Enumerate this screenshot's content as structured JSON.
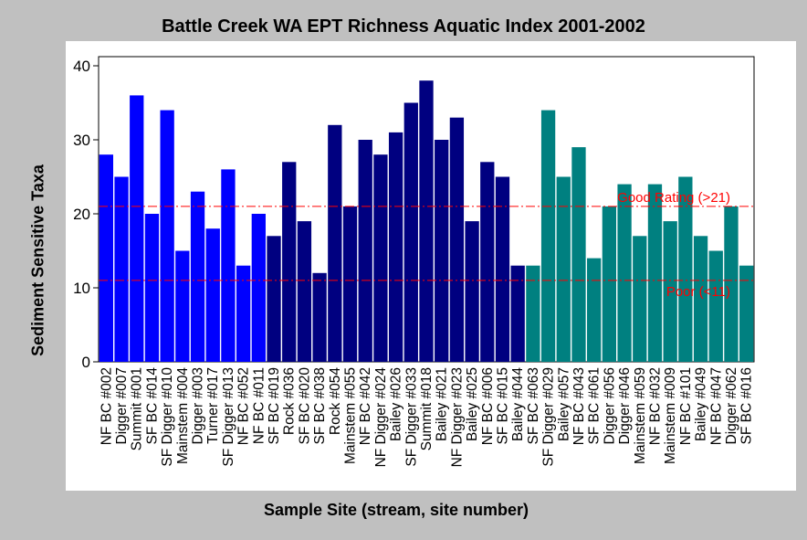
{
  "chart_data": {
    "type": "bar",
    "title": "Battle Creek WA EPT Richness Aquatic Index 2001-2002",
    "xlabel": "Sample Site (stream, site number)",
    "ylabel": "Sediment Sensitive Taxa",
    "ylim": [
      0,
      40
    ],
    "yticks": [
      0,
      10,
      20,
      30,
      40
    ],
    "grid": false,
    "categories": [
      "NF BC #002",
      "Digger #007",
      "Summit #001",
      "SF BC #014",
      "SF Digger #010",
      "Mainstem #004",
      "Digger #003",
      "Turner #017",
      "SF Digger #013",
      "NF BC #052",
      "NF BC #011",
      "SF BC #019",
      "Rock #036",
      "SF BC #020",
      "SF BC #038",
      "Rock #054",
      "Mainstem #055",
      "NF BC #042",
      "NF Digger #024",
      "Bailey #026",
      "SF Digger #033",
      "Summit #018",
      "Bailey #021",
      "NF Digger #023",
      "Bailey #025",
      "NF BC #006",
      "SF BC #015",
      "Bailey #044",
      "SF BC #063",
      "SF Digger #029",
      "Bailey #057",
      "NF BC #043",
      "SF BC #061",
      "Digger #056",
      "Digger #046",
      "Mainstem #059",
      "NF BC #032",
      "Mainstem #009",
      "NF BC #101",
      "Bailey #049",
      "NF BC #047",
      "Digger #062",
      "SF BC #016"
    ],
    "values": [
      28,
      25,
      36,
      20,
      34,
      15,
      23,
      18,
      26,
      13,
      20,
      17,
      27,
      19,
      12,
      32,
      21,
      30,
      28,
      31,
      35,
      38,
      30,
      33,
      19,
      27,
      25,
      13,
      13,
      34,
      25,
      29,
      14,
      21,
      24,
      17,
      24,
      19,
      25,
      17,
      15,
      21,
      13
    ],
    "bar_colors": [
      "#0000ff",
      "#0000ff",
      "#0000ff",
      "#0000ff",
      "#0000ff",
      "#0000ff",
      "#0000ff",
      "#0000ff",
      "#0000ff",
      "#0000ff",
      "#0000ff",
      "#000080",
      "#000080",
      "#000080",
      "#000080",
      "#000080",
      "#000080",
      "#000080",
      "#000080",
      "#000080",
      "#000080",
      "#000080",
      "#000080",
      "#000080",
      "#000080",
      "#000080",
      "#000080",
      "#000080",
      "#008080",
      "#008080",
      "#008080",
      "#008080",
      "#008080",
      "#008080",
      "#008080",
      "#008080",
      "#008080",
      "#008080",
      "#008080",
      "#008080",
      "#008080",
      "#008080",
      "#008080"
    ],
    "reference_lines": [
      {
        "value": 21,
        "label": "Good Rating  (>21)",
        "color": "#ff0000"
      },
      {
        "value": 11,
        "label": "Poor (<11)",
        "color": "#ff0000"
      }
    ]
  }
}
